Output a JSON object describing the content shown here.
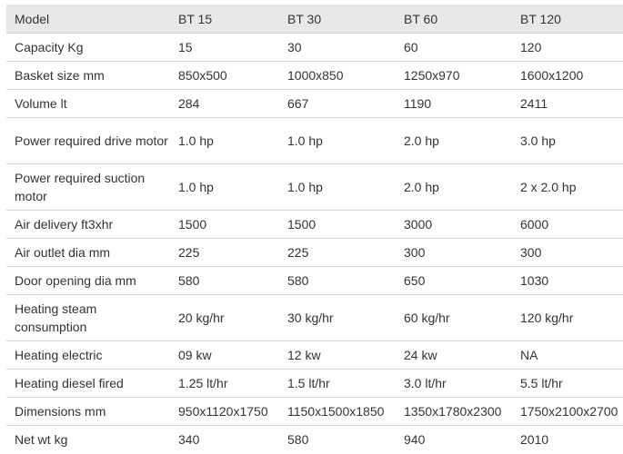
{
  "table": {
    "headers": [
      "Model",
      "BT 15",
      "BT 30",
      "BT 60",
      "BT 120"
    ],
    "rows": [
      {
        "label": "Capacity Kg",
        "values": [
          "15",
          "30",
          "60",
          "120"
        ]
      },
      {
        "label": "Basket size mm",
        "values": [
          "850x500",
          "1000x850",
          "1250x970",
          "1600x1200"
        ]
      },
      {
        "label": "Volume lt",
        "values": [
          "284",
          "667",
          "1190",
          "2411"
        ]
      },
      {
        "label": "Power required drive motor",
        "values": [
          "1.0 hp",
          "1.0 hp",
          "2.0 hp",
          "3.0 hp"
        ]
      },
      {
        "label": "Power required suction motor",
        "values": [
          "1.0 hp",
          "1.0 hp",
          "2.0 hp",
          "2 x 2.0 hp"
        ]
      },
      {
        "label": "Air delivery ft3xhr",
        "values": [
          "1500",
          "1500",
          "3000",
          "6000"
        ]
      },
      {
        "label": "Air outlet dia mm",
        "values": [
          "225",
          "225",
          "300",
          "300"
        ]
      },
      {
        "label": "Door opening dia mm",
        "values": [
          "580",
          "580",
          "650",
          "1030"
        ]
      },
      {
        "label": "Heating steam consumption",
        "values": [
          "20 kg/hr",
          "30 kg/hr",
          "60 kg/hr",
          "120 kg/hr"
        ]
      },
      {
        "label": "Heating electric",
        "values": [
          "09 kw",
          "12 kw",
          "24 kw",
          "NA"
        ]
      },
      {
        "label": "Heating diesel fired",
        "values": [
          "1.25 lt/hr",
          "1.5 lt/hr",
          "3.0 lt/hr",
          "5.5 lt/hr"
        ]
      },
      {
        "label": "Dimensions mm",
        "values": [
          "950x1120x1750",
          "1150x1500x1850",
          "1350x1780x2300",
          "1750x2100x2700"
        ]
      },
      {
        "label": "Net wt kg",
        "values": [
          "340",
          "580",
          "940",
          "2010"
        ]
      }
    ]
  }
}
